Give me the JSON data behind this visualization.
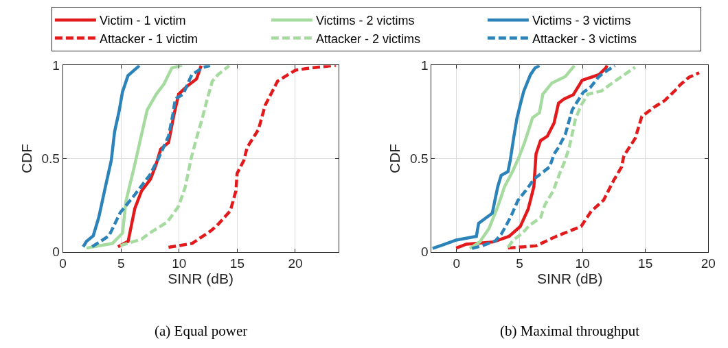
{
  "chart_data": [
    {
      "type": "line",
      "xlabel": "SINR (dB)",
      "ylabel": "CDF",
      "xlim": [
        0,
        23.7
      ],
      "xticks": [
        0,
        5,
        10,
        15,
        20
      ],
      "ylim": [
        0,
        1
      ],
      "yticks": [
        0,
        0.5,
        1
      ],
      "grid": true,
      "legend": "top",
      "annotations": [
        "(a) Equal power"
      ],
      "series": [
        {
          "name": "Victim - 1 victim",
          "color": "#e31a1c",
          "line_style": "solid",
          "x": [
            4.74,
            5.61,
            6.19,
            6.77,
            7.54,
            8.03,
            8.41,
            9.09,
            9.57,
            9.96,
            10.73,
            11.5,
            11.9
          ],
          "values": [
            0.027,
            0.056,
            0.233,
            0.327,
            0.39,
            0.47,
            0.55,
            0.586,
            0.739,
            0.845,
            0.89,
            0.927,
            0.998
          ]
        },
        {
          "name": "Victims - 2 victims",
          "color": "#a6dba0",
          "line_style": "solid",
          "x": [
            2.03,
            4.26,
            5.13,
            5.42,
            6.19,
            6.77,
            7.25,
            8.03,
            8.7,
            9.38,
            10.25
          ],
          "values": [
            0.02,
            0.045,
            0.1,
            0.27,
            0.47,
            0.63,
            0.76,
            0.845,
            0.9,
            0.986,
            1.0
          ]
        },
        {
          "name": "Victims - 3 victims",
          "color": "#2b83ba",
          "line_style": "solid",
          "x": [
            1.74,
            2.03,
            2.61,
            3.09,
            3.68,
            4.16,
            4.45,
            4.84,
            5.12,
            5.6,
            6.58
          ],
          "values": [
            0.027,
            0.056,
            0.086,
            0.186,
            0.356,
            0.49,
            0.645,
            0.756,
            0.856,
            0.945,
            0.998
          ]
        },
        {
          "name": "Attacker - 1 victim",
          "color": "#e31a1c",
          "line_style": "dashed",
          "x": [
            9.09,
            11.12,
            12.67,
            13.25,
            14.41,
            14.89,
            14.99,
            15.57,
            15.86,
            16.83,
            17.41,
            18.09,
            18.47,
            20.02,
            21.37,
            23.5
          ],
          "values": [
            0.024,
            0.045,
            0.11,
            0.14,
            0.22,
            0.327,
            0.42,
            0.49,
            0.56,
            0.656,
            0.786,
            0.868,
            0.915,
            0.974,
            0.986,
            1.0
          ]
        },
        {
          "name": "Attacker - 2 victims",
          "color": "#a6dba0",
          "line_style": "dashed",
          "x": [
            4.93,
            6.77,
            7.45,
            8.99,
            9.96,
            10.54,
            11.03,
            11.5,
            11.99,
            12.38,
            12.86,
            13.35,
            14.31
          ],
          "values": [
            0.033,
            0.068,
            0.1,
            0.16,
            0.245,
            0.35,
            0.5,
            0.61,
            0.715,
            0.81,
            0.915,
            0.95,
            0.998
          ]
        },
        {
          "name": "Attacker - 3 victims",
          "color": "#2b83ba",
          "line_style": "dashed",
          "x": [
            2.51,
            3.97,
            4.93,
            6.11,
            7.46,
            8.22,
            9.09,
            9.47,
            9.67,
            10.35,
            10.93,
            11.1,
            12.1,
            12.67
          ],
          "values": [
            0.027,
            0.086,
            0.21,
            0.3,
            0.41,
            0.5,
            0.62,
            0.74,
            0.82,
            0.845,
            0.927,
            0.95,
            0.99,
            0.998
          ]
        }
      ]
    },
    {
      "type": "line",
      "xlabel": "SINR (dB)",
      "ylabel": "CDF",
      "xlim": [
        -2,
        20
      ],
      "xticks": [
        0,
        5,
        10,
        15,
        20
      ],
      "ylim": [
        0,
        1
      ],
      "yticks": [
        0,
        0.5,
        1
      ],
      "grid": true,
      "annotations": [
        "(b) Maximal throughput"
      ],
      "series": [
        {
          "color": "#e31a1c",
          "line_style": "solid",
          "x": [
            -0.04,
            0.77,
            2.92,
            4.17,
            5.06,
            5.69,
            6.14,
            6.31,
            6.67,
            7.21,
            7.74,
            8.1,
            8.55,
            9.27,
            9.98,
            11.32,
            11.86,
            11.95
          ],
          "values": [
            0.02,
            0.041,
            0.053,
            0.083,
            0.136,
            0.23,
            0.35,
            0.525,
            0.596,
            0.62,
            0.69,
            0.797,
            0.82,
            0.842,
            0.92,
            0.95,
            0.986,
            1.0
          ]
        },
        {
          "color": "#a6dba0",
          "line_style": "solid",
          "x": [
            1.04,
            1.84,
            2.56,
            3.27,
            3.81,
            4.44,
            4.97,
            5.42,
            6.04,
            6.58,
            6.85,
            7.57,
            8.64,
            9.36
          ],
          "values": [
            0.018,
            0.053,
            0.124,
            0.242,
            0.35,
            0.43,
            0.51,
            0.59,
            0.72,
            0.745,
            0.845,
            0.905,
            0.94,
            0.998
          ]
        },
        {
          "color": "#2b83ba",
          "line_style": "solid",
          "x": [
            -1.91,
            -0.93,
            -0.04,
            1.57,
            1.75,
            2.83,
            3.27,
            3.54,
            4.08,
            4.26,
            4.53,
            4.79,
            5.06,
            5.33,
            5.6,
            5.87,
            6.23,
            6.58
          ],
          "values": [
            0.018,
            0.041,
            0.063,
            0.083,
            0.153,
            0.207,
            0.35,
            0.41,
            0.43,
            0.49,
            0.61,
            0.715,
            0.79,
            0.86,
            0.905,
            0.95,
            0.986,
            0.998
          ]
        },
        {
          "color": "#e31a1c",
          "line_style": "dashed",
          "x": [
            4.08,
            6.31,
            7.92,
            9.89,
            10.7,
            11.68,
            12.49,
            13.11,
            13.29,
            14.19,
            14.72,
            15.8,
            16.52,
            17.41,
            17.76,
            18.48,
            19.28
          ],
          "values": [
            0.02,
            0.032,
            0.083,
            0.136,
            0.218,
            0.277,
            0.384,
            0.455,
            0.514,
            0.608,
            0.726,
            0.78,
            0.81,
            0.868,
            0.895,
            0.936,
            0.96
          ]
        },
        {
          "color": "#a6dba0",
          "line_style": "dashed",
          "x": [
            4.08,
            4.53,
            5.24,
            5.78,
            6.67,
            7.03,
            7.66,
            8.19,
            8.55,
            8.91,
            9.18,
            9.45,
            9.89,
            10.43,
            11.5,
            12.58,
            13.56,
            14.19
          ],
          "values": [
            0.024,
            0.065,
            0.1,
            0.142,
            0.183,
            0.254,
            0.325,
            0.42,
            0.478,
            0.55,
            0.63,
            0.714,
            0.785,
            0.845,
            0.862,
            0.915,
            0.96,
            0.99
          ]
        },
        {
          "color": "#2b83ba",
          "line_style": "dashed",
          "x": [
            1.22,
            2.02,
            3.09,
            3.54,
            3.99,
            4.35,
            4.88,
            5.6,
            6.14,
            7.39,
            7.75,
            8.1,
            8.64,
            9.18,
            9.54,
            10.07,
            10.61,
            11.32,
            11.68,
            12.58
          ],
          "values": [
            0.018,
            0.032,
            0.059,
            0.094,
            0.148,
            0.195,
            0.277,
            0.337,
            0.39,
            0.455,
            0.525,
            0.56,
            0.63,
            0.76,
            0.8,
            0.856,
            0.88,
            0.94,
            0.96,
            0.998
          ]
        }
      ]
    }
  ]
}
